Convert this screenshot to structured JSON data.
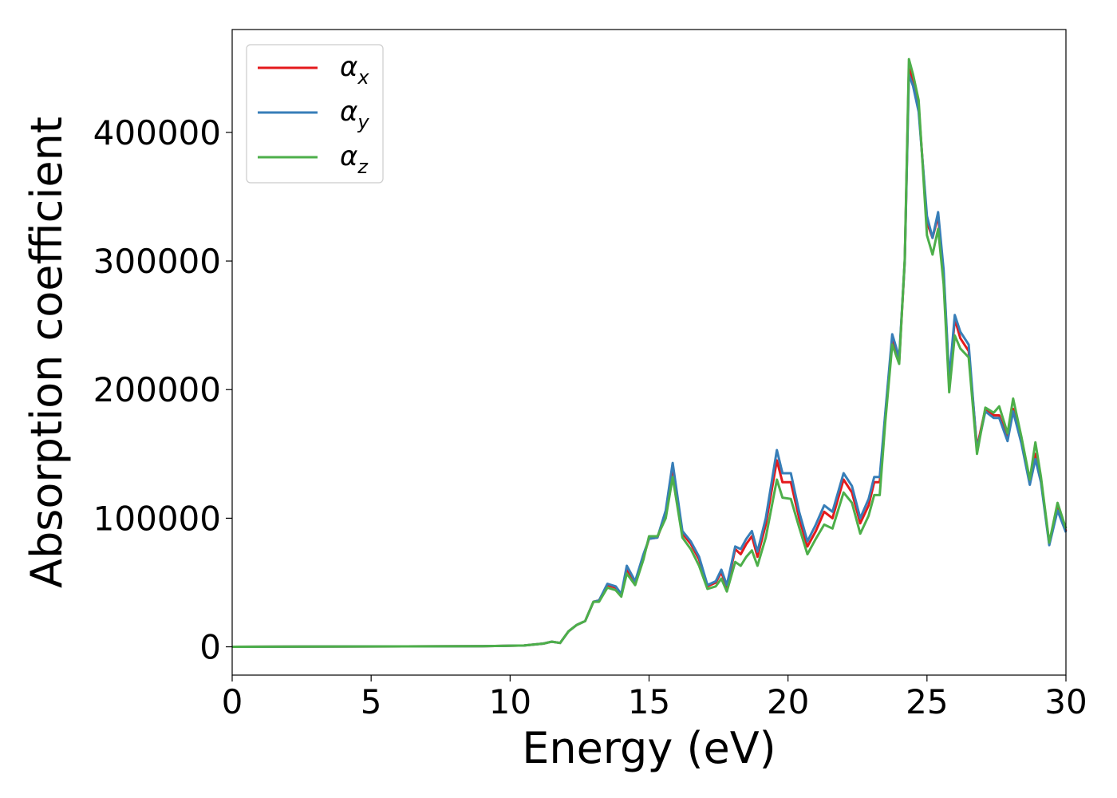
{
  "chart_data": {
    "type": "line",
    "xlabel": "Energy (eV)",
    "ylabel": "Absorption coefficient",
    "xlim": [
      0,
      30
    ],
    "ylim": [
      -22000,
      480000
    ],
    "xticks": [
      0,
      5,
      10,
      15,
      20,
      25,
      30
    ],
    "xtick_labels": [
      "0",
      "5",
      "10",
      "15",
      "20",
      "25",
      "30"
    ],
    "yticks": [
      0,
      100000,
      200000,
      300000,
      400000
    ],
    "ytick_labels": [
      "0",
      "100000",
      "200000",
      "300000",
      "400000"
    ],
    "grid": false,
    "legend_position": "top-left",
    "x": [
      0,
      9,
      10.5,
      11.2,
      11.5,
      11.8,
      12.1,
      12.4,
      12.7,
      13.0,
      13.2,
      13.5,
      13.8,
      14.0,
      14.2,
      14.5,
      14.8,
      15.0,
      15.3,
      15.6,
      15.85,
      16.2,
      16.5,
      16.8,
      17.1,
      17.4,
      17.6,
      17.8,
      18.1,
      18.3,
      18.5,
      18.7,
      18.9,
      19.2,
      19.6,
      19.8,
      20.1,
      20.4,
      20.7,
      21.0,
      21.3,
      21.6,
      22.0,
      22.3,
      22.6,
      22.9,
      23.1,
      23.3,
      23.5,
      23.75,
      24.0,
      24.2,
      24.35,
      24.5,
      24.7,
      25.0,
      25.2,
      25.4,
      25.6,
      25.8,
      26.0,
      26.2,
      26.5,
      26.8,
      27.1,
      27.4,
      27.6,
      27.9,
      28.1,
      28.4,
      28.7,
      28.9,
      29.1,
      29.4,
      29.7,
      30.0
    ],
    "series": [
      {
        "name": "αx",
        "color": "#e41a1c",
        "values": [
          0,
          500,
          1000,
          2500,
          4000,
          3000,
          12000,
          17000,
          20000,
          35000,
          36000,
          48000,
          46000,
          40000,
          60000,
          50000,
          70000,
          84000,
          85000,
          103000,
          140000,
          88000,
          80000,
          68000,
          47000,
          50000,
          58000,
          46000,
          76000,
          72000,
          80000,
          86000,
          70000,
          95000,
          145000,
          128000,
          128000,
          100000,
          78000,
          90000,
          105000,
          100000,
          130000,
          120000,
          96000,
          110000,
          128000,
          128000,
          180000,
          240000,
          222000,
          300000,
          450000,
          440000,
          420000,
          330000,
          318000,
          335000,
          290000,
          205000,
          255000,
          240000,
          230000,
          155000,
          185000,
          180000,
          180000,
          162000,
          185000,
          160000,
          128000,
          150000,
          130000,
          80000,
          108000,
          90000
        ]
      },
      {
        "name": "αy",
        "color": "#377eb8",
        "values": [
          0,
          500,
          1000,
          2500,
          4000,
          3000,
          12000,
          17000,
          20000,
          35000,
          36000,
          49000,
          47000,
          41000,
          63000,
          51000,
          72000,
          84000,
          85000,
          106000,
          143000,
          90000,
          82000,
          70000,
          48000,
          51000,
          60000,
          48000,
          78000,
          76000,
          84000,
          90000,
          74000,
          100000,
          153000,
          135000,
          135000,
          105000,
          82000,
          95000,
          110000,
          105000,
          135000,
          125000,
          100000,
          115000,
          132000,
          132000,
          182000,
          243000,
          225000,
          300000,
          445000,
          436000,
          416000,
          335000,
          318000,
          338000,
          293000,
          208000,
          258000,
          245000,
          235000,
          153000,
          183000,
          178000,
          178000,
          160000,
          183000,
          158000,
          126000,
          146000,
          128000,
          79000,
          106000,
          89000
        ]
      },
      {
        "name": "αz",
        "color": "#4daf4a",
        "values": [
          0,
          500,
          1000,
          2500,
          4000,
          3000,
          12000,
          17000,
          20000,
          35000,
          35000,
          46000,
          44000,
          39000,
          57000,
          48000,
          68000,
          86000,
          86000,
          100000,
          132000,
          85000,
          76000,
          63000,
          45000,
          47000,
          53000,
          43000,
          66000,
          63000,
          70000,
          75000,
          63000,
          85000,
          130000,
          116000,
          115000,
          93000,
          72000,
          84000,
          95000,
          92000,
          120000,
          112000,
          88000,
          102000,
          118000,
          118000,
          175000,
          235000,
          220000,
          302000,
          457000,
          445000,
          425000,
          320000,
          305000,
          325000,
          282000,
          198000,
          242000,
          232000,
          225000,
          150000,
          186000,
          182000,
          187000,
          166000,
          193000,
          163000,
          130000,
          159000,
          132000,
          81000,
          112000,
          92000
        ]
      }
    ],
    "legend": [
      {
        "greek": "α",
        "sub": "x",
        "color": "#e41a1c"
      },
      {
        "greek": "α",
        "sub": "y",
        "color": "#377eb8"
      },
      {
        "greek": "α",
        "sub": "z",
        "color": "#4daf4a"
      }
    ]
  }
}
